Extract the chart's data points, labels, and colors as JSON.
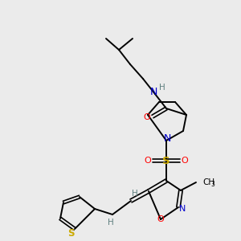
{
  "bg_color": "#ebebeb",
  "atom_colors": {
    "C": "#000000",
    "N": "#0000cc",
    "O": "#ff0000",
    "S": "#ccaa00",
    "H": "#5f8080"
  },
  "bond_color": "#000000",
  "figsize": [
    3.0,
    3.0
  ],
  "dpi": 100
}
